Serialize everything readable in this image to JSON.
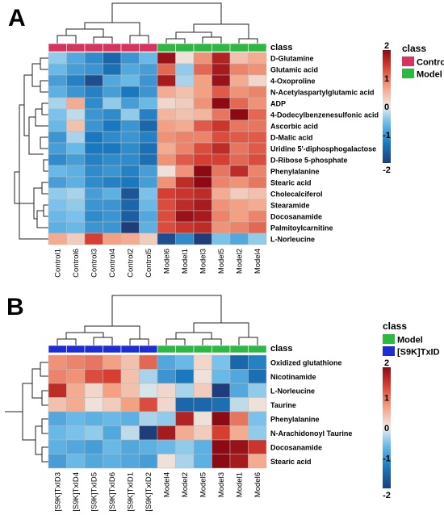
{
  "chart_data": [
    {
      "type": "heatmap",
      "panel_label": "A",
      "class_label": "class",
      "legend": {
        "title": "class",
        "entries": [
          {
            "name": "Control",
            "color": "#d7335f"
          },
          {
            "name": "Model",
            "color": "#2db843"
          }
        ]
      },
      "colorbar": {
        "ticks": [
          "2",
          "1",
          "0",
          "-1",
          "-2"
        ],
        "min": -2,
        "max": 2
      },
      "columns": [
        "Control1",
        "Control6",
        "Control3",
        "Control4",
        "Control2",
        "Control5",
        "Model6",
        "Model1",
        "Model3",
        "Model5",
        "Model2",
        "Model4"
      ],
      "column_classes": [
        "Control",
        "Control",
        "Control",
        "Control",
        "Control",
        "Control",
        "Model",
        "Model",
        "Model",
        "Model",
        "Model",
        "Model"
      ],
      "rows": [
        "D-Glutamine",
        "Glutamic acid",
        "4-Oxoproline",
        "N-Acetylaspartylglutamic acid",
        "ADP",
        "4-Dodecylbenzenesulfonic acid",
        "Ascorbic acid",
        "D-Malic acid",
        "Uridine 5'-diphosphogalactose",
        "D-Ribose 5-phosphate",
        "Phenylalanine",
        "Stearic acid",
        "Cholecalciferol",
        "Stearamide",
        "Docosanamide",
        "Palmitoylcarnitine",
        "L-Norleucine"
      ],
      "values": [
        [
          -0.4,
          -0.8,
          -1.1,
          -1.5,
          -1.0,
          -0.6,
          1.9,
          0.1,
          0.8,
          1.7,
          0.4,
          0.6
        ],
        [
          -0.6,
          -0.9,
          -1.0,
          -1.4,
          -0.8,
          -0.9,
          1.1,
          -0.4,
          1.1,
          1.8,
          0.9,
          0.8
        ],
        [
          -0.9,
          -1.2,
          -1.8,
          -0.8,
          -0.6,
          -1.0,
          1.8,
          -0.3,
          0.7,
          1.9,
          0.6,
          0.2
        ],
        [
          -0.7,
          -1.0,
          -1.2,
          -0.9,
          -1.3,
          -1.0,
          0.6,
          0.4,
          0.7,
          1.2,
          0.8,
          0.9
        ],
        [
          -0.3,
          0.6,
          -1.1,
          -0.4,
          -0.9,
          -0.6,
          0.2,
          0.3,
          0.8,
          2.0,
          1.1,
          0.8
        ],
        [
          -0.5,
          -0.2,
          -1.0,
          -1.1,
          -0.4,
          -1.2,
          0.5,
          0.4,
          0.5,
          1.0,
          2.1,
          1.1
        ],
        [
          -0.6,
          0.4,
          -1.0,
          -1.3,
          -1.0,
          -1.5,
          0.7,
          0.6,
          1.2,
          1.5,
          1.0,
          1.0
        ],
        [
          -1.0,
          -0.3,
          -1.3,
          -1.1,
          -1.0,
          -1.2,
          0.8,
          0.9,
          0.9,
          1.3,
          1.2,
          1.2
        ],
        [
          -0.9,
          -0.6,
          -1.3,
          -1.3,
          -1.1,
          -1.4,
          0.6,
          0.9,
          1.3,
          1.6,
          1.0,
          1.2
        ],
        [
          -1.1,
          -0.9,
          -1.2,
          -1.1,
          -1.1,
          -1.4,
          0.8,
          1.2,
          1.4,
          1.4,
          1.1,
          1.3
        ],
        [
          -0.6,
          -0.7,
          -1.1,
          -1.0,
          -1.2,
          -0.9,
          0.1,
          0.8,
          2.1,
          1.0,
          1.6,
          0.9
        ],
        [
          -0.9,
          -0.7,
          -1.1,
          -1.2,
          -1.3,
          -0.9,
          0.8,
          1.6,
          2.0,
          0.9,
          0.8,
          1.0
        ],
        [
          -0.4,
          -0.3,
          -0.9,
          -0.7,
          -1.7,
          -0.5,
          1.4,
          1.5,
          1.6,
          0.6,
          0.3,
          0.4
        ],
        [
          -0.5,
          -0.4,
          -1.0,
          -1.0,
          -1.5,
          -0.6,
          1.3,
          1.6,
          1.8,
          0.8,
          0.7,
          0.6
        ],
        [
          -0.6,
          -0.5,
          -1.1,
          -1.0,
          -1.6,
          -0.8,
          1.3,
          1.9,
          1.8,
          0.9,
          0.7,
          0.9
        ],
        [
          -0.7,
          -0.6,
          -1.0,
          -1.0,
          -2.1,
          -0.7,
          1.3,
          1.5,
          1.6,
          0.8,
          0.9,
          1.1
        ],
        [
          0.6,
          0.3,
          1.4,
          0.7,
          0.6,
          0.3,
          -1.8,
          -1.1,
          -2.3,
          -0.5,
          -0.8,
          -0.4
        ]
      ]
    },
    {
      "type": "heatmap",
      "panel_label": "B",
      "class_label": "class",
      "legend": {
        "title": "class",
        "entries": [
          {
            "name": "Model",
            "color": "#2db843"
          },
          {
            "name": "[S9K]TxID",
            "color": "#1f2bd6"
          }
        ]
      },
      "colorbar": {
        "ticks": [
          "2",
          "1",
          "0",
          "-1",
          "-2"
        ],
        "min": -2,
        "max": 2
      },
      "columns": [
        "[S9K]TxID3",
        "[S9K]TxID4",
        "[S9K]TxID5",
        "[S9K]TxID6",
        "[S9K]TxID1",
        "[S9K]TxID2",
        "Model4",
        "Model2",
        "Model5",
        "Model3",
        "Model1",
        "Model6"
      ],
      "column_classes": [
        "[S9K]TxID",
        "[S9K]TxID",
        "[S9K]TxID",
        "[S9K]TxID",
        "[S9K]TxID",
        "[S9K]TxID",
        "Model",
        "Model",
        "Model",
        "Model",
        "Model",
        "Model"
      ],
      "rows": [
        "Oxidized glutathione",
        "Nicotinamide",
        "L-Norleucine",
        "Taurine",
        "Phenylalanine",
        "N-Arachidonoyl Taurine",
        "Docosanamide",
        "Stearic acid"
      ],
      "values": [
        [
          0.8,
          0.9,
          1.0,
          0.7,
          0.4,
          1.1,
          -0.8,
          -0.6,
          0.2,
          -0.5,
          -1.5,
          -1.2
        ],
        [
          0.9,
          0.8,
          1.3,
          1.4,
          0.4,
          -0.3,
          -1.0,
          -1.3,
          0.1,
          -0.6,
          -0.8,
          -1.4
        ],
        [
          1.6,
          0.6,
          0.2,
          0.7,
          0.4,
          -0.1,
          0.2,
          -0.3,
          0.3,
          -2.1,
          -0.8,
          -0.4
        ],
        [
          0.4,
          0.6,
          0.1,
          0.3,
          0.7,
          1.3,
          0.2,
          -1.5,
          -1.5,
          -1.4,
          -0.2,
          0.1
        ],
        [
          -0.8,
          -0.6,
          -0.7,
          -0.6,
          -0.7,
          -0.3,
          -0.4,
          1.7,
          0.1,
          2.1,
          1.0,
          -0.5
        ],
        [
          -0.6,
          -0.5,
          -0.4,
          -0.8,
          -0.2,
          -2.1,
          1.8,
          0.6,
          0.3,
          1.4,
          0.6,
          -0.4
        ],
        [
          -0.7,
          -0.8,
          -0.9,
          -0.6,
          -0.8,
          -0.7,
          -0.6,
          -0.4,
          -0.7,
          2.0,
          1.9,
          1.5
        ],
        [
          -0.9,
          -0.6,
          -0.8,
          -0.7,
          -0.8,
          -0.9,
          0.1,
          -0.3,
          -0.7,
          2.2,
          1.8,
          0.6
        ]
      ]
    }
  ]
}
